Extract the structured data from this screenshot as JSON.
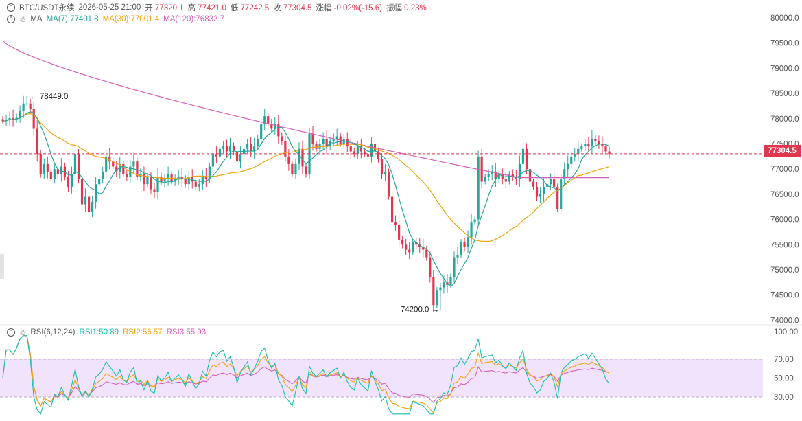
{
  "header": {
    "symbol": "BTC/USDT永续",
    "datetime": "2026-05-25 21:00",
    "open_label": "开",
    "open": "77320.1",
    "high_label": "高",
    "high": "77421.0",
    "low_label": "低",
    "low": "77242.5",
    "close_label": "收",
    "close": "77304.5",
    "change_label": "涨幅",
    "change": "-0.02%(-15.6)",
    "amplitude_label": "振幅",
    "amplitude": "0.23%"
  },
  "ma_legend": {
    "label": "MA",
    "ma7": "MA(7):77401.8",
    "ma30": "MA(30):77001.4",
    "ma120": "MA(120):76832.7"
  },
  "rsi_legend": {
    "label": "RSI(6,12,24)",
    "rsi1": "RSI1:50.89",
    "rsi2": "RSI2:56.57",
    "rsi3": "RSI3:55.93"
  },
  "current_price_tag": "77304.5",
  "colors": {
    "up": "#26a69a",
    "down": "#e0364e",
    "ma7": "#26a69a",
    "ma30": "#f0a30a",
    "ma120": "#d35fb7",
    "rsi1": "#14c0b0",
    "rsi2": "#f0a30a",
    "rsi3": "#d35fb7",
    "rsi_band": "#f1e3fb"
  },
  "chart_data": {
    "type": "candlestick",
    "y_ticks": [
      "80000.0",
      "79500.0",
      "79000.0",
      "78500.0",
      "78000.0",
      "77500.0",
      "77000.0",
      "76500.0",
      "76000.0",
      "75500.0",
      "75000.0",
      "74500.0",
      "74000.0"
    ],
    "y_ticks_values": [
      80000,
      79500,
      79000,
      78500,
      78000,
      77500,
      77000,
      76500,
      76000,
      75500,
      75000,
      74500,
      74000
    ],
    "ylim": [
      73950,
      80150
    ],
    "current_price": 77304.5,
    "annotations": [
      {
        "text": "← 78449.0",
        "x_index": 7,
        "y": 78449.0,
        "side": "right"
      },
      {
        "text": "74200.0 →",
        "x_index": 127,
        "y": 74200.0,
        "side": "left"
      }
    ],
    "closes": [
      77950,
      77980,
      78010,
      77990,
      78020,
      78150,
      78300,
      78300,
      78200,
      77800,
      77300,
      76900,
      77100,
      76950,
      76800,
      77000,
      76900,
      77050,
      76850,
      76650,
      76900,
      77300,
      76800,
      76300,
      76450,
      76150,
      76350,
      76700,
      76800,
      76950,
      77250,
      77150,
      77050,
      76950,
      77100,
      76900,
      76850,
      77050,
      77150,
      76850,
      76900,
      76700,
      76850,
      76600,
      76550,
      76850,
      76750,
      76800,
      76900,
      76750,
      76800,
      76850,
      76800,
      76700,
      76850,
      76750,
      76650,
      76700,
      76850,
      76800,
      77050,
      77300,
      77250,
      77400,
      77450,
      77350,
      77450,
      77350,
      77150,
      77300,
      77400,
      77500,
      77350,
      77450,
      77600,
      77900,
      78050,
      77900,
      77800,
      77900,
      77650,
      77550,
      77250,
      77100,
      76900,
      77100,
      77400,
      77050,
      76900,
      77700,
      77500,
      77400,
      77500,
      77600,
      77450,
      77550,
      77600,
      77650,
      77500,
      77600,
      77450,
      77350,
      77300,
      77450,
      77350,
      77300,
      77250,
      77500,
      77350,
      77200,
      76900,
      76950,
      76450,
      75950,
      75900,
      75600,
      75500,
      75400,
      75350,
      75550,
      75500,
      75450,
      75400,
      75250,
      74850,
      74300,
      74600,
      74650,
      74750,
      74700,
      74850,
      75250,
      75300,
      75550,
      75450,
      75650,
      75950,
      76000,
      77250,
      76750,
      76850,
      76900,
      76950,
      76800,
      76900,
      76800,
      76750,
      76900,
      76850,
      76800,
      77100,
      77400,
      77000,
      76750,
      76650,
      76450,
      76500,
      76650,
      76700,
      76800,
      76650,
      76200,
      76800,
      77000,
      77100,
      77250,
      77300,
      77400,
      77450,
      77500,
      77450,
      77600,
      77550,
      77500,
      77450,
      77350,
      77300
    ],
    "y_axis_rsi": [
      "100.00",
      "70.00",
      "50.00",
      "30.00"
    ],
    "rsi_ylim": [
      0,
      100
    ],
    "rsi_band": [
      30,
      70
    ]
  }
}
